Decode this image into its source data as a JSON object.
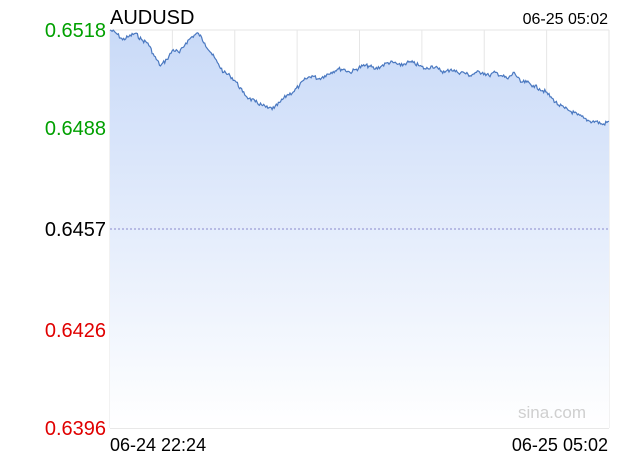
{
  "chart_data": {
    "type": "area",
    "title": "AUDUSD",
    "timestamp": "06-25 05:02",
    "x_start_label": "06-24 22:24",
    "x_end_label": "06-25 05:02",
    "watermark": "sina.com",
    "ylim": [
      0.6396,
      0.6518
    ],
    "y_ticks": [
      {
        "label": "0.6518",
        "value": 0.6518,
        "color": "#00a000"
      },
      {
        "label": "0.6488",
        "value": 0.6488,
        "color": "#00a000"
      },
      {
        "label": "0.6457",
        "value": 0.6457,
        "color": "#000000"
      },
      {
        "label": "0.6426",
        "value": 0.6426,
        "color": "#e00000"
      },
      {
        "label": "0.6396",
        "value": 0.6396,
        "color": "#e00000"
      }
    ],
    "reference_value": 0.6457,
    "line_color": "#4a78c0",
    "fill_color_top": "#c9daf8",
    "fill_color_bottom": "#ffffff",
    "grid": true,
    "series": [
      {
        "values": [
          0.6518,
          0.6517,
          0.6515,
          0.6516,
          0.6517,
          0.6515,
          0.6514,
          0.651,
          0.6507,
          0.6509,
          0.6512,
          0.6511,
          0.6514,
          0.6516,
          0.6517,
          0.6514,
          0.6511,
          0.6508,
          0.6505,
          0.6504,
          0.6502,
          0.6499,
          0.6497,
          0.6496,
          0.6495,
          0.6494,
          0.6494,
          0.6496,
          0.6498,
          0.6499,
          0.6501,
          0.6503,
          0.6504,
          0.6503,
          0.6504,
          0.6505,
          0.6506,
          0.6506,
          0.6505,
          0.6506,
          0.6507,
          0.6507,
          0.6506,
          0.6507,
          0.6508,
          0.6508,
          0.6507,
          0.6508,
          0.6508,
          0.6507,
          0.6506,
          0.6507,
          0.6506,
          0.6505,
          0.6506,
          0.6505,
          0.6505,
          0.6504,
          0.6505,
          0.6505,
          0.6504,
          0.6505,
          0.6504,
          0.6503,
          0.6505,
          0.6502,
          0.6502,
          0.6501,
          0.65,
          0.6499,
          0.6497,
          0.6495,
          0.6494,
          0.6493,
          0.6492,
          0.6491,
          0.649,
          0.649,
          0.6489,
          0.649
        ]
      }
    ]
  }
}
